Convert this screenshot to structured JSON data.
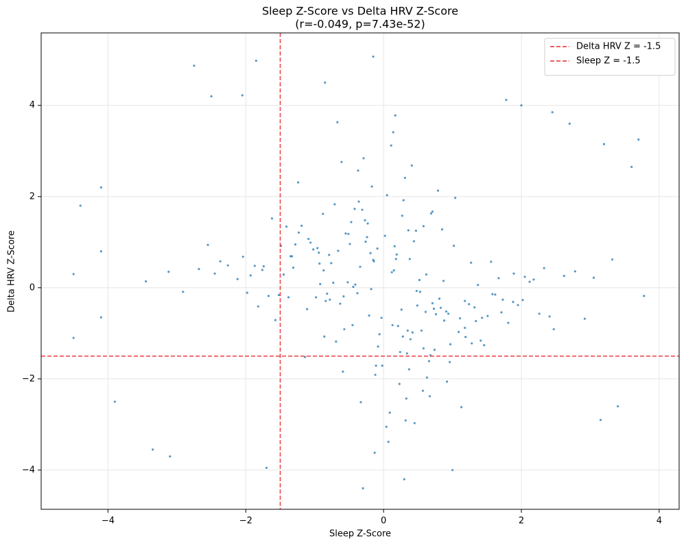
{
  "chart_data": {
    "type": "scatter",
    "title": "Sleep Z-Score vs Delta HRV Z-Score",
    "subtitle": "(r=-0.049, p=7.43e-52)",
    "x_label": "Sleep Z-Score",
    "y_label": "Delta HRV Z-Score",
    "xlim": [
      -4.97,
      4.29
    ],
    "ylim": [
      -4.86,
      5.59
    ],
    "xticks": [
      {
        "value": -4,
        "label": "−4"
      },
      {
        "value": -2,
        "label": "−2"
      },
      0,
      2,
      4
    ],
    "yticks": [
      {
        "value": -4,
        "label": "−4"
      },
      {
        "value": -2,
        "label": "−2"
      },
      0,
      2,
      4
    ],
    "grid": true,
    "legend": "upper right",
    "color": "#1f77b4",
    "x": [
      0.12,
      -0.45,
      0.87,
      -1.23,
      0.34,
      1.56,
      -0.78,
      0.05,
      -0.21,
      1.02,
      -1.67,
      0.58,
      0.23,
      -0.34,
      1.34,
      -0.92,
      0.71,
      -0.08,
      2.05,
      -1.11,
      0.44,
      -0.63,
      1.18,
      -0.15,
      -2.12,
      0.96,
      0.31,
      -0.52,
      1.71,
      -0.27,
      -0.86,
      0.19,
      -1.45,
      0.67,
      0.02,
      -0.38,
      1.43,
      2.33,
      -0.71,
      0.55,
      1.27,
      -0.11,
      -0.96,
      0.81,
      -1.82,
      0.36,
      -0.44,
      0.09,
      1.95,
      -1.35,
      0.61,
      -0.17,
      -2.45,
      1.09,
      0.27,
      -0.58,
      0.74,
      -1.02,
      0.48,
      2.62,
      -0.31,
      1.51,
      -0.69,
      0.15,
      -1.28,
      0.92,
      0.38,
      -2.68,
      0.04,
      1.18,
      0.83,
      -0.49,
      0.29,
      -1.57,
      1.62,
      -0.06,
      -0.93,
      2.18,
      0.41,
      -0.24,
      -1.93,
      0.68,
      1.37,
      -0.37,
      0.21,
      -0.79,
      1.88,
      -0.12,
      -1.19,
      0.53,
      0.97,
      -2.26,
      0.11,
      0.76,
      -0.55,
      1.24,
      -1.38,
      0.33,
      2.78,
      -0.66,
      0.18,
      -0.82,
      1.46,
      -1.06,
      0.63,
      -0.29,
      0.88,
      -1.74,
      2.47,
      0.07,
      -0.47,
      1.13,
      -0.14,
      0.52,
      -2.91,
      0.39,
      1.67,
      -0.88,
      0.26,
      -1.49,
      1.81,
      -0.36,
      0.71,
      -1.14,
      0.14,
      2.12,
      -0.59,
      0.94,
      -2.04,
      0.47,
      -0.73,
      0.28,
      -1.62,
      1.32,
      0.57,
      -0.19,
      -3.12,
      1.04,
      0.35,
      -0.98,
      0.66,
      -1.31,
      2.26,
      -0.42,
      0.16,
      -0.84,
      1.19,
      -0.03,
      -1.76,
      0.79,
      3.05,
      -0.57,
      0.45,
      -1.41,
      0.91,
      -0.26,
      1.58,
      -2.37,
      0.24,
      -0.61,
      -0.09,
      1.73,
      -1.09,
      0.37,
      -0.76,
      2.92,
      -0.33,
      0.62,
      -1.52,
      1.28,
      0.49,
      -2.55,
      0.85,
      -0.18,
      1.41,
      -0.67,
      -1.87,
      0.13,
      3.32,
      -0.41,
      -1.24,
      0.73,
      -0.02,
      1.89,
      -0.94,
      0.32,
      -0.51,
      2.41,
      -3.45,
      0.58,
      1.11,
      -0.23,
      -1.33,
      0.42,
      2.02,
      -0.87,
      0.17,
      -1.98,
      0.69,
      -0.13,
      -4.5,
      -4.5,
      -4.4,
      -4.1,
      -2.75,
      -1.85,
      -0.85,
      -0.15,
      1.78,
      2.0,
      3.7,
      3.78,
      3.4,
      -0.3,
      0.3,
      1.0,
      -1.7,
      -3.35,
      -3.1,
      -4.1,
      -4.1,
      -3.9,
      3.15,
      3.6,
      3.2,
      2.7,
      2.45,
      -2.5,
      -2.05
    ],
    "y": [
      0.34,
      -0.82,
      0.15,
      1.21,
      -1.44,
      0.57,
      -0.26,
      2.03,
      -0.61,
      0.92,
      -0.18,
      1.35,
      -2.11,
      0.46,
      -0.73,
      0.08,
      1.67,
      -1.29,
      0.24,
      -0.47,
      1.02,
      -0.35,
      -0.88,
      0.61,
      0.19,
      -1.63,
      2.41,
      0.12,
      -0.54,
      1.48,
      -1.07,
      0.73,
      0.29,
      -2.38,
      1.14,
      -0.12,
      -0.66,
      0.43,
      1.83,
      -0.94,
      0.55,
      -1.71,
      0.87,
      -0.24,
      -0.41,
      1.26,
      0.02,
      -2.74,
      -0.38,
      0.69,
      -0.53,
      2.22,
      0.31,
      -0.97,
      1.58,
      -0.19,
      -1.36,
      0.84,
      -0.07,
      0.26,
      1.71,
      -0.62,
      -1.18,
      0.38,
      0.95,
      -2.06,
      0.63,
      0.41,
      -3.05,
      -0.29,
      -0.44,
      0.96,
      1.92,
      -0.71,
      -0.15,
      -1.02,
      0.53,
      0.18,
      2.68,
      1.11,
      0.27,
      -1.48,
      0.06,
      2.57,
      -0.84,
      0.72,
      -0.31,
      -1.91,
      1.36,
      -0.09,
      -1.24,
      0.49,
      3.12,
      -0.58,
      1.19,
      -0.36,
      -0.21,
      -2.43,
      0.36,
      0.81,
      0.63,
      -0.13,
      -1.26,
      0.99,
      -1.97,
      2.84,
      -0.72,
      0.47,
      -0.91,
      -3.38,
      1.44,
      -2.62,
      0.58,
      0.17,
      -0.09,
      -1.13,
      0.21,
      1.62,
      -0.48,
      0.92,
      -0.77,
      1.89,
      -0.34,
      -1.52,
      3.41,
      0.13,
      -1.84,
      -0.57,
      0.68,
      1.25,
      0.11,
      -1.07,
      1.52,
      -0.43,
      -2.26,
      0.76,
      0.35,
      1.97,
      -0.94,
      -0.21,
      -1.61,
      0.44,
      -0.57,
      1.73,
      0.91,
      -0.29,
      -1.08,
      -0.66,
      0.39,
      2.13,
      0.22,
      -0.91,
      -2.97,
      1.34,
      -0.52,
      1.01,
      -0.14,
      0.58,
      -1.41,
      2.76,
      0.86,
      -0.26,
      1.07,
      -1.79,
      0.54,
      -0.68,
      -2.51,
      0.29,
      -0.16,
      -1.22,
      -0.39,
      0.94,
      1.28,
      -0.03,
      -1.16,
      3.63,
      0.48,
      -0.82,
      0.62,
      0.07,
      2.31,
      -0.46,
      -1.71,
      0.31,
      0.77,
      -2.91,
      1.18,
      -0.63,
      0.14,
      -1.33,
      -0.67,
      1.41,
      0.69,
      -0.98,
      -0.27,
      0.38,
      3.78,
      -0.11,
      1.63,
      -3.62,
      -1.1,
      0.3,
      1.8,
      2.2,
      4.87,
      4.98,
      4.5,
      5.07,
      4.12,
      4.0,
      3.25,
      -0.18,
      -2.6,
      -4.4,
      -4.2,
      -4.0,
      -3.95,
      -3.55,
      -3.7,
      0.8,
      -0.65,
      -2.5,
      -2.9,
      2.65,
      3.15,
      3.6,
      3.85,
      4.2,
      4.22
    ],
    "reference_lines": [
      {
        "name": "Delta HRV Z = -1.5",
        "axis": "y",
        "value": -1.5,
        "color": "#e8262a"
      },
      {
        "name": "Sleep Z = -1.5",
        "axis": "x",
        "value": -1.5,
        "color": "#e8262a"
      }
    ]
  }
}
